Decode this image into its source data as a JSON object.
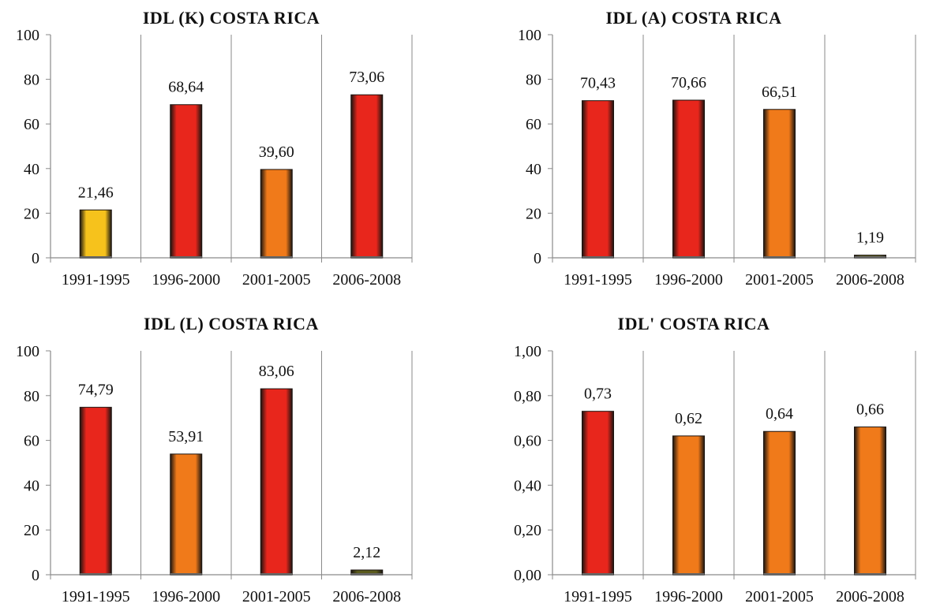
{
  "colors": {
    "grid": "#8a8a8a",
    "bar_dark": "#1a1410",
    "bar_red": "#e8261c",
    "bar_orange": "#f07a1a",
    "bar_yellow": "#f6c21c",
    "bar_olive": "#5a5a1c"
  },
  "chart_data": [
    {
      "type": "bar",
      "title": "IDL (K) COSTA RICA",
      "categories": [
        "1991-1995",
        "1996-2000",
        "2001-2005",
        "2006-2008"
      ],
      "values": [
        21.46,
        68.64,
        39.6,
        73.06
      ],
      "value_labels": [
        "21,46",
        "68,64",
        "39,60",
        "73,06"
      ],
      "ylim": [
        0,
        100
      ],
      "yticks": [
        0,
        20,
        40,
        60,
        80,
        100
      ],
      "ytick_labels": [
        "0",
        "20",
        "40",
        "60",
        "80",
        "100"
      ],
      "grid": "vertical",
      "legend": "none"
    },
    {
      "type": "bar",
      "title": "IDL (A) COSTA RICA",
      "categories": [
        "1991-1995",
        "1996-2000",
        "2001-2005",
        "2006-2008"
      ],
      "values": [
        70.43,
        70.66,
        66.51,
        1.19
      ],
      "value_labels": [
        "70,43",
        "70,66",
        "66,51",
        "1,19"
      ],
      "ylim": [
        0,
        100
      ],
      "yticks": [
        0,
        20,
        40,
        60,
        80,
        100
      ],
      "ytick_labels": [
        "0",
        "20",
        "40",
        "60",
        "80",
        "100"
      ],
      "grid": "vertical",
      "legend": "none"
    },
    {
      "type": "bar",
      "title": "IDL (L) COSTA RICA",
      "categories": [
        "1991-1995",
        "1996-2000",
        "2001-2005",
        "2006-2008"
      ],
      "values": [
        74.79,
        53.91,
        83.06,
        2.12
      ],
      "value_labels": [
        "74,79",
        "53,91",
        "83,06",
        "2,12"
      ],
      "ylim": [
        0,
        100
      ],
      "yticks": [
        0,
        20,
        40,
        60,
        80,
        100
      ],
      "ytick_labels": [
        "0",
        "20",
        "40",
        "60",
        "80",
        "100"
      ],
      "grid": "vertical",
      "legend": "none"
    },
    {
      "type": "bar",
      "title": "IDL' COSTA RICA",
      "categories": [
        "1991-1995",
        "1996-2000",
        "2001-2005",
        "2006-2008"
      ],
      "values": [
        0.73,
        0.62,
        0.64,
        0.66
      ],
      "value_labels": [
        "0,73",
        "0,62",
        "0,64",
        "0,66"
      ],
      "ylim": [
        0,
        1
      ],
      "yticks": [
        0,
        0.2,
        0.4,
        0.6,
        0.8,
        1.0
      ],
      "ytick_labels": [
        "0,00",
        "0,20",
        "0,40",
        "0,60",
        "0,80",
        "1,00"
      ],
      "grid": "vertical",
      "legend": "none"
    }
  ]
}
